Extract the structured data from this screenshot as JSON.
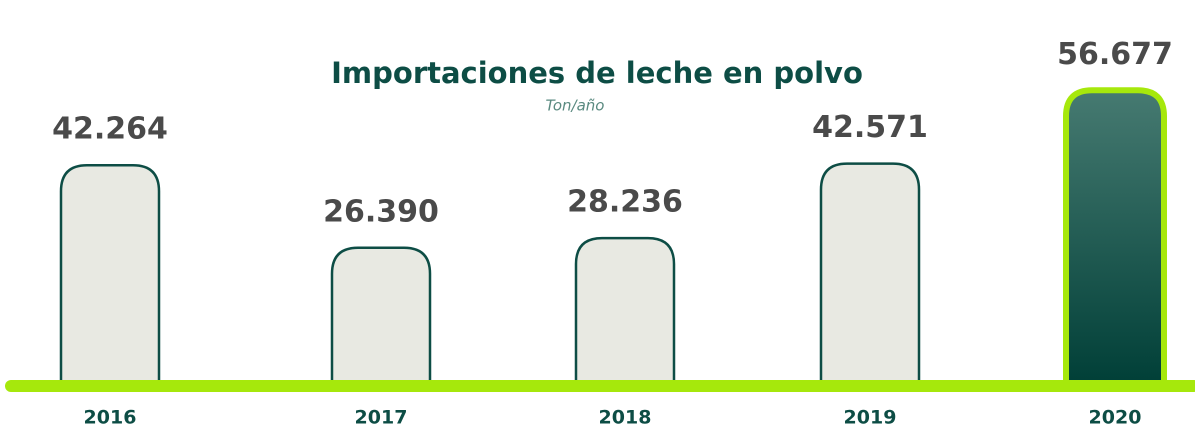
{
  "chart_data": {
    "type": "bar",
    "title": "Importaciones de leche en polvo",
    "subtitle": "Ton/año",
    "categories": [
      "2016",
      "2017",
      "2018",
      "2019",
      "2020"
    ],
    "values": [
      42264,
      26390,
      28236,
      42571,
      56677
    ],
    "value_labels": [
      "42.264",
      "26.390",
      "28.236",
      "42.571",
      "56.677"
    ],
    "colors": [
      "#e8e9e2",
      "#e8e9e2",
      "#e8e9e2",
      "#e8e9e2",
      "#0d5c50"
    ],
    "strokes": [
      "#0d4d45",
      "#0d4d45",
      "#0d4d45",
      "#0d4d45",
      "#a6e80c"
    ],
    "baseline_color": "#a6e80c",
    "ylim": [
      0,
      60000
    ]
  }
}
